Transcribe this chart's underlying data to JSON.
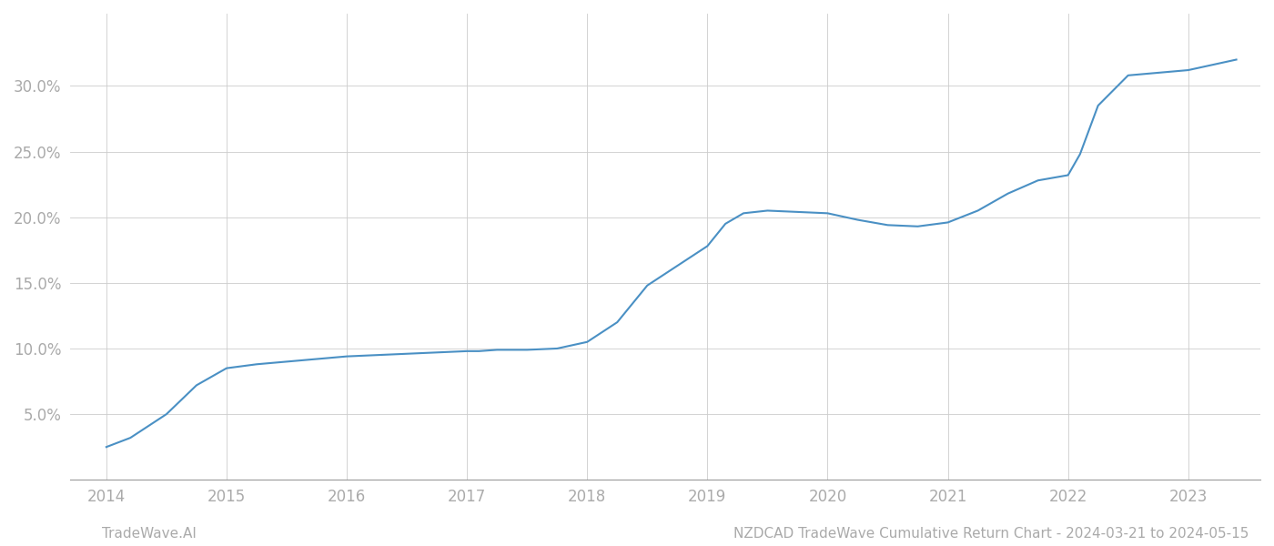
{
  "x_years": [
    2014.0,
    2014.2,
    2014.5,
    2014.75,
    2015.0,
    2015.25,
    2015.5,
    2015.75,
    2016.0,
    2016.25,
    2016.5,
    2016.75,
    2017.0,
    2017.1,
    2017.25,
    2017.5,
    2017.75,
    2018.0,
    2018.25,
    2018.5,
    2018.75,
    2019.0,
    2019.15,
    2019.3,
    2019.5,
    2019.75,
    2020.0,
    2020.25,
    2020.5,
    2020.75,
    2021.0,
    2021.25,
    2021.5,
    2021.75,
    2022.0,
    2022.1,
    2022.25,
    2022.5,
    2022.75,
    2023.0,
    2023.25,
    2023.4
  ],
  "y_values": [
    0.025,
    0.032,
    0.05,
    0.072,
    0.085,
    0.088,
    0.09,
    0.092,
    0.094,
    0.095,
    0.096,
    0.097,
    0.098,
    0.098,
    0.099,
    0.099,
    0.1,
    0.105,
    0.12,
    0.148,
    0.163,
    0.178,
    0.195,
    0.203,
    0.205,
    0.204,
    0.203,
    0.198,
    0.194,
    0.193,
    0.196,
    0.205,
    0.218,
    0.228,
    0.232,
    0.248,
    0.285,
    0.308,
    0.31,
    0.312,
    0.317,
    0.32
  ],
  "line_color": "#4a90c4",
  "line_width": 1.5,
  "background_color": "#ffffff",
  "grid_color": "#cccccc",
  "ytick_labels": [
    "5.0%",
    "10.0%",
    "15.0%",
    "20.0%",
    "25.0%",
    "30.0%"
  ],
  "ytick_values": [
    0.05,
    0.1,
    0.15,
    0.2,
    0.25,
    0.3
  ],
  "xtick_labels": [
    "2014",
    "2015",
    "2016",
    "2017",
    "2018",
    "2019",
    "2020",
    "2021",
    "2022",
    "2023"
  ],
  "xtick_values": [
    2014,
    2015,
    2016,
    2017,
    2018,
    2019,
    2020,
    2021,
    2022,
    2023
  ],
  "xlim": [
    2013.7,
    2023.6
  ],
  "ylim": [
    0.0,
    0.355
  ],
  "footer_left": "TradeWave.AI",
  "footer_right": "NZDCAD TradeWave Cumulative Return Chart - 2024-03-21 to 2024-05-15",
  "footer_color": "#aaaaaa",
  "footer_fontsize": 11,
  "tick_fontsize": 12,
  "spine_color": "#999999"
}
